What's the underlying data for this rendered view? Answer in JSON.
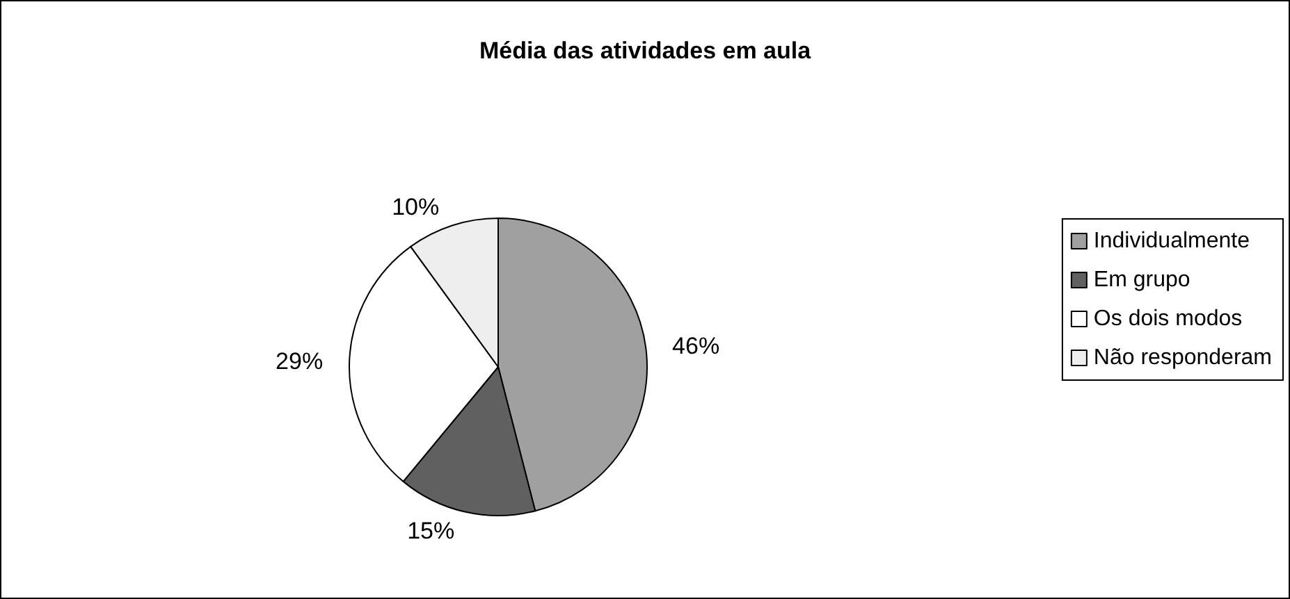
{
  "chart_data": {
    "type": "pie",
    "title": "Média das atividades em aula",
    "categories": [
      "Individualmente",
      "Em grupo",
      "Os dois modos",
      "Não responderam"
    ],
    "values": [
      46,
      15,
      29,
      10
    ],
    "colors": [
      "#a0a0a0",
      "#606060",
      "#ffffff",
      "#eeeeee"
    ],
    "value_labels": [
      "46%",
      "15%",
      "29%",
      "10%"
    ],
    "legend": "right"
  }
}
